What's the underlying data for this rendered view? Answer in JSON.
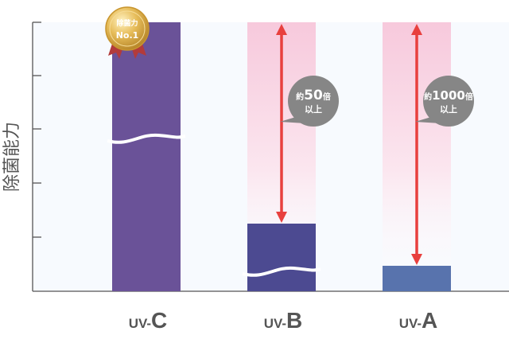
{
  "chart_data": {
    "type": "bar",
    "ylabel": "除菌能力",
    "grid": false,
    "axis_break": true,
    "categories": [
      {
        "prefix": "UV-",
        "letter": "C"
      },
      {
        "prefix": "UV-",
        "letter": "B"
      },
      {
        "prefix": "UV-",
        "letter": "A"
      }
    ],
    "bars": [
      {
        "name": "UV-C",
        "relative_value": 1.0,
        "color": "#6a5298",
        "break": true
      },
      {
        "name": "UV-B",
        "relative_value": 0.25,
        "color": "#4c4a91",
        "break": true
      },
      {
        "name": "UV-A",
        "relative_value": 0.094,
        "color": "#5873ad",
        "break": false
      }
    ],
    "medal": {
      "line1": "除菌力",
      "line2": "No.1"
    },
    "callouts": [
      {
        "target": "UV-B",
        "line1_prefix": "約",
        "line1_number": "50",
        "line1_suffix": "倍",
        "line2": "以上"
      },
      {
        "target": "UV-A",
        "line1_prefix": "約",
        "line1_number": "1000",
        "line1_suffix": "倍",
        "line2": "以上"
      }
    ],
    "colors": {
      "arrow": "#e8403e",
      "bubble": "#868686",
      "band_pink": "#f9d5e3",
      "plot_bg": "#f7fafe",
      "axis": "#555555",
      "label": "#555555"
    }
  }
}
